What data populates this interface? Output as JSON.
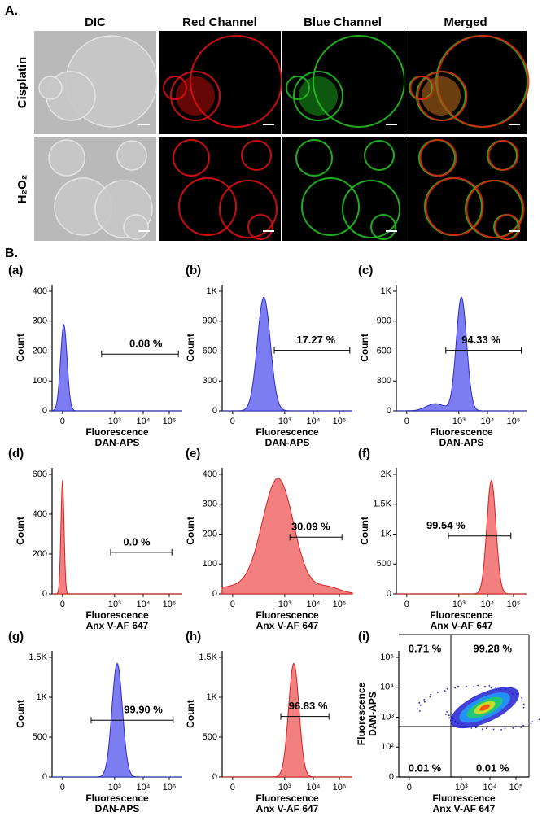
{
  "panel_a": {
    "label": "A.",
    "columns": [
      "DIC",
      "Red Channel",
      "Blue Channel",
      "Merged"
    ],
    "rows": [
      "Cisplatin",
      "H₂O₂"
    ]
  },
  "panel_b": {
    "label": "B.",
    "plots": [
      {
        "label": "(a)",
        "color": "#7d7df2",
        "ylabel": "Count",
        "xlabel": [
          "Fluorescence",
          "DAN-APS"
        ],
        "yticks": [
          "0",
          "100",
          "200",
          "300",
          "400"
        ],
        "xticks": [
          "0",
          "10³",
          "10⁴",
          "10⁵"
        ],
        "gate": "0.08 %"
      },
      {
        "label": "(b)",
        "color": "#7d7df2",
        "ylabel": "Count",
        "xlabel": [
          "Fluorescence",
          "DAN-APS"
        ],
        "yticks": [
          "0",
          "300",
          "600",
          "900",
          "1K"
        ],
        "xticks": [
          "0",
          "10³",
          "10⁴",
          "10⁵"
        ],
        "gate": "17.27 %"
      },
      {
        "label": "(c)",
        "color": "#7d7df2",
        "ylabel": "Count",
        "xlabel": [
          "Fluorescence",
          "DAN-APS"
        ],
        "yticks": [
          "0",
          "300",
          "600",
          "900",
          "1K"
        ],
        "xticks": [
          "0",
          "10³",
          "10⁴",
          "10⁵"
        ],
        "gate": "94.33 %"
      },
      {
        "label": "(d)",
        "color": "#f28080",
        "ylabel": "Count",
        "xlabel": [
          "Fluorescence",
          "Anx V-AF 647"
        ],
        "yticks": [
          "0",
          "200",
          "400",
          "600"
        ],
        "xticks": [
          "0",
          "10³",
          "10⁴",
          "10⁵"
        ],
        "gate": "0.0 %"
      },
      {
        "label": "(e)",
        "color": "#f28080",
        "ylabel": "Count",
        "xlabel": [
          "Fluorescence",
          "Anx V-AF 647"
        ],
        "yticks": [
          "0",
          "100",
          "200",
          "300",
          "400"
        ],
        "xticks": [
          "0",
          "10³",
          "10⁴",
          "10⁵"
        ],
        "gate": "30.09 %"
      },
      {
        "label": "(f)",
        "color": "#f28080",
        "ylabel": "Count",
        "xlabel": [
          "Fluorescence",
          "Anx V-AF 647"
        ],
        "yticks": [
          "0",
          "500",
          "1K",
          "1.5K",
          "2K"
        ],
        "xticks": [
          "0",
          "10³",
          "10⁴",
          "10⁵"
        ],
        "gate": "99.54 %"
      },
      {
        "label": "(g)",
        "color": "#7d7df2",
        "ylabel": "Count",
        "xlabel": [
          "Fluorescence",
          "DAN-APS"
        ],
        "yticks": [
          "0",
          "500",
          "1K",
          "1.5K"
        ],
        "xticks": [
          "0",
          "10³",
          "10⁴",
          "10⁵"
        ],
        "gate": "99.90 %"
      },
      {
        "label": "(h)",
        "color": "#f28080",
        "ylabel": "Count",
        "xlabel": [
          "Fluorescence",
          "Anx V-AF 647"
        ],
        "yticks": [
          "0",
          "500",
          "1K",
          "1.5K"
        ],
        "xticks": [
          "0",
          "10³",
          "10⁴",
          "10⁵"
        ],
        "gate": "96.83 %"
      }
    ],
    "scatter": {
      "label": "(i)",
      "ylabel": [
        "Fluorescence",
        "DAN-APS"
      ],
      "xlabel": [
        "Fluorescence",
        "Anx V-AF 647"
      ],
      "yticks": [
        "0",
        "10²",
        "10³",
        "10⁴",
        "10⁵"
      ],
      "xticks": [
        "0",
        "10³",
        "10⁴",
        "10⁵"
      ],
      "quadrants": [
        "0.71 %",
        "99.28 %",
        "0.01 %",
        "0.01 %"
      ]
    }
  }
}
